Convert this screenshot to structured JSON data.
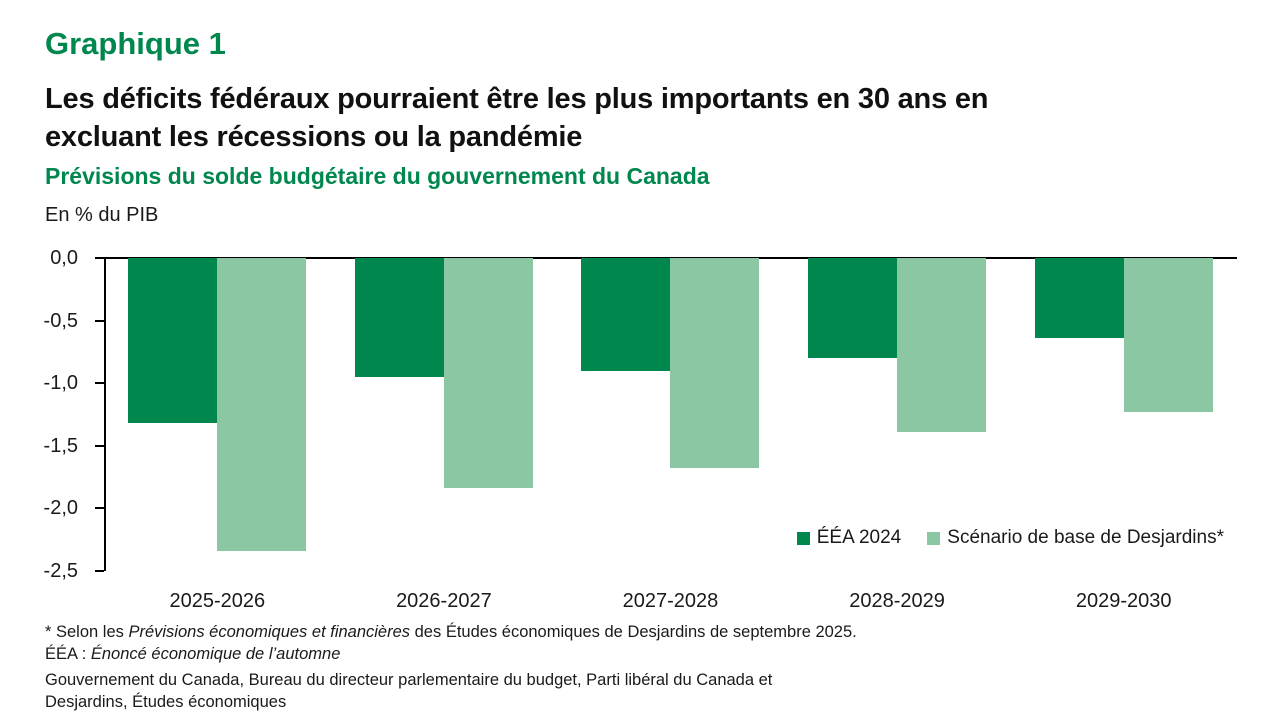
{
  "header": {
    "kicker": "Graphique 1",
    "title_lines": [
      "Les déficits fédéraux pourraient être les plus importants en 30 ans en",
      "excluant les récessions ou la pandémie"
    ],
    "subtitle": "Prévisions du solde budgétaire du gouvernement du Canada",
    "unit_label": "En % du PIB"
  },
  "colors": {
    "title_green": "#00874E",
    "series_dark": "#00874E",
    "series_light": "#8CC7A4",
    "axis": "#000000",
    "text": "#1A1A1A"
  },
  "chart_data": {
    "type": "bar",
    "title": "Prévisions du solde budgétaire du gouvernement du Canada",
    "xlabel": "",
    "ylabel": "En % du PIB",
    "categories": [
      "2025-2026",
      "2026-2027",
      "2027-2028",
      "2028-2029",
      "2029-2030"
    ],
    "series": [
      {
        "name": "ÉÉA 2024",
        "color": "#00874E",
        "values": [
          -1.32,
          -0.95,
          -0.9,
          -0.8,
          -0.64
        ]
      },
      {
        "name": "Scénario de base de Desjardins*",
        "color": "#8CC7A4",
        "values": [
          -2.34,
          -1.84,
          -1.68,
          -1.39,
          -1.23
        ]
      }
    ],
    "ylim": [
      -2.5,
      0
    ],
    "ytick_labels": [
      "0,0",
      "-0,5",
      "-1,0",
      "-1,5",
      "-2,0",
      "-2,5"
    ],
    "grid": false,
    "legend_position": "inside bottom-right"
  },
  "footnotes": {
    "line1": [
      {
        "text": "* Selon les ",
        "italic": false
      },
      {
        "text": "Prévisions économiques et financières",
        "italic": true
      },
      {
        "text": " des Études économiques de Desjardins de septembre 2025.",
        "italic": false
      }
    ],
    "line2": [
      {
        "text": "ÉÉA : ",
        "italic": false
      },
      {
        "text": "Énoncé économique de l’automne",
        "italic": true
      }
    ],
    "source_lines": [
      "Gouvernement du Canada, Bureau du directeur parlementaire du budget, Parti libéral du Canada et",
      "Desjardins, Études économiques"
    ]
  }
}
